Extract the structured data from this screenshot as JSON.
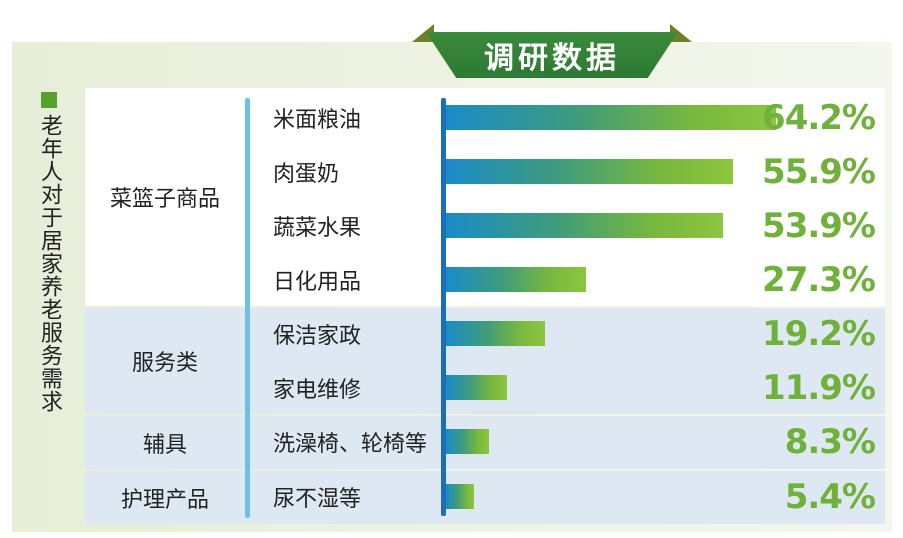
{
  "header": {
    "title": "调研数据"
  },
  "side_label": "老年人对于居家养老服务需求",
  "colors": {
    "accent_green": "#6fb13a",
    "ribbon_green": "#2c7a33",
    "axis_blue": "#1a6fb5",
    "divider_blue": "#6dc1e8",
    "alt_row": "#dde8f2"
  },
  "groups": [
    {
      "label": "菜篮子商品"
    },
    {
      "label": "服务类"
    },
    {
      "label": "辅具"
    },
    {
      "label": "护理产品"
    }
  ],
  "chart_data": {
    "type": "bar",
    "orientation": "horizontal",
    "title": "",
    "xlabel": "",
    "ylabel": "",
    "xlim": [
      0,
      64.2
    ],
    "categories": [
      "米面粮油",
      "肉蛋奶",
      "蔬菜水果",
      "日化用品",
      "保洁家政",
      "家电维修",
      "洗澡椅、轮椅等",
      "尿不湿等"
    ],
    "values": [
      64.2,
      55.9,
      53.9,
      27.3,
      19.2,
      11.9,
      8.3,
      5.4
    ],
    "value_labels": [
      "64.2%",
      "55.9%",
      "53.9%",
      "27.3%",
      "19.2%",
      "11.9%",
      "8.3%",
      "5.4%"
    ],
    "category_groups": [
      "菜篮子商品",
      "菜篮子商品",
      "菜篮子商品",
      "菜篮子商品",
      "服务类",
      "服务类",
      "辅具",
      "护理产品"
    ],
    "unit": "%"
  }
}
